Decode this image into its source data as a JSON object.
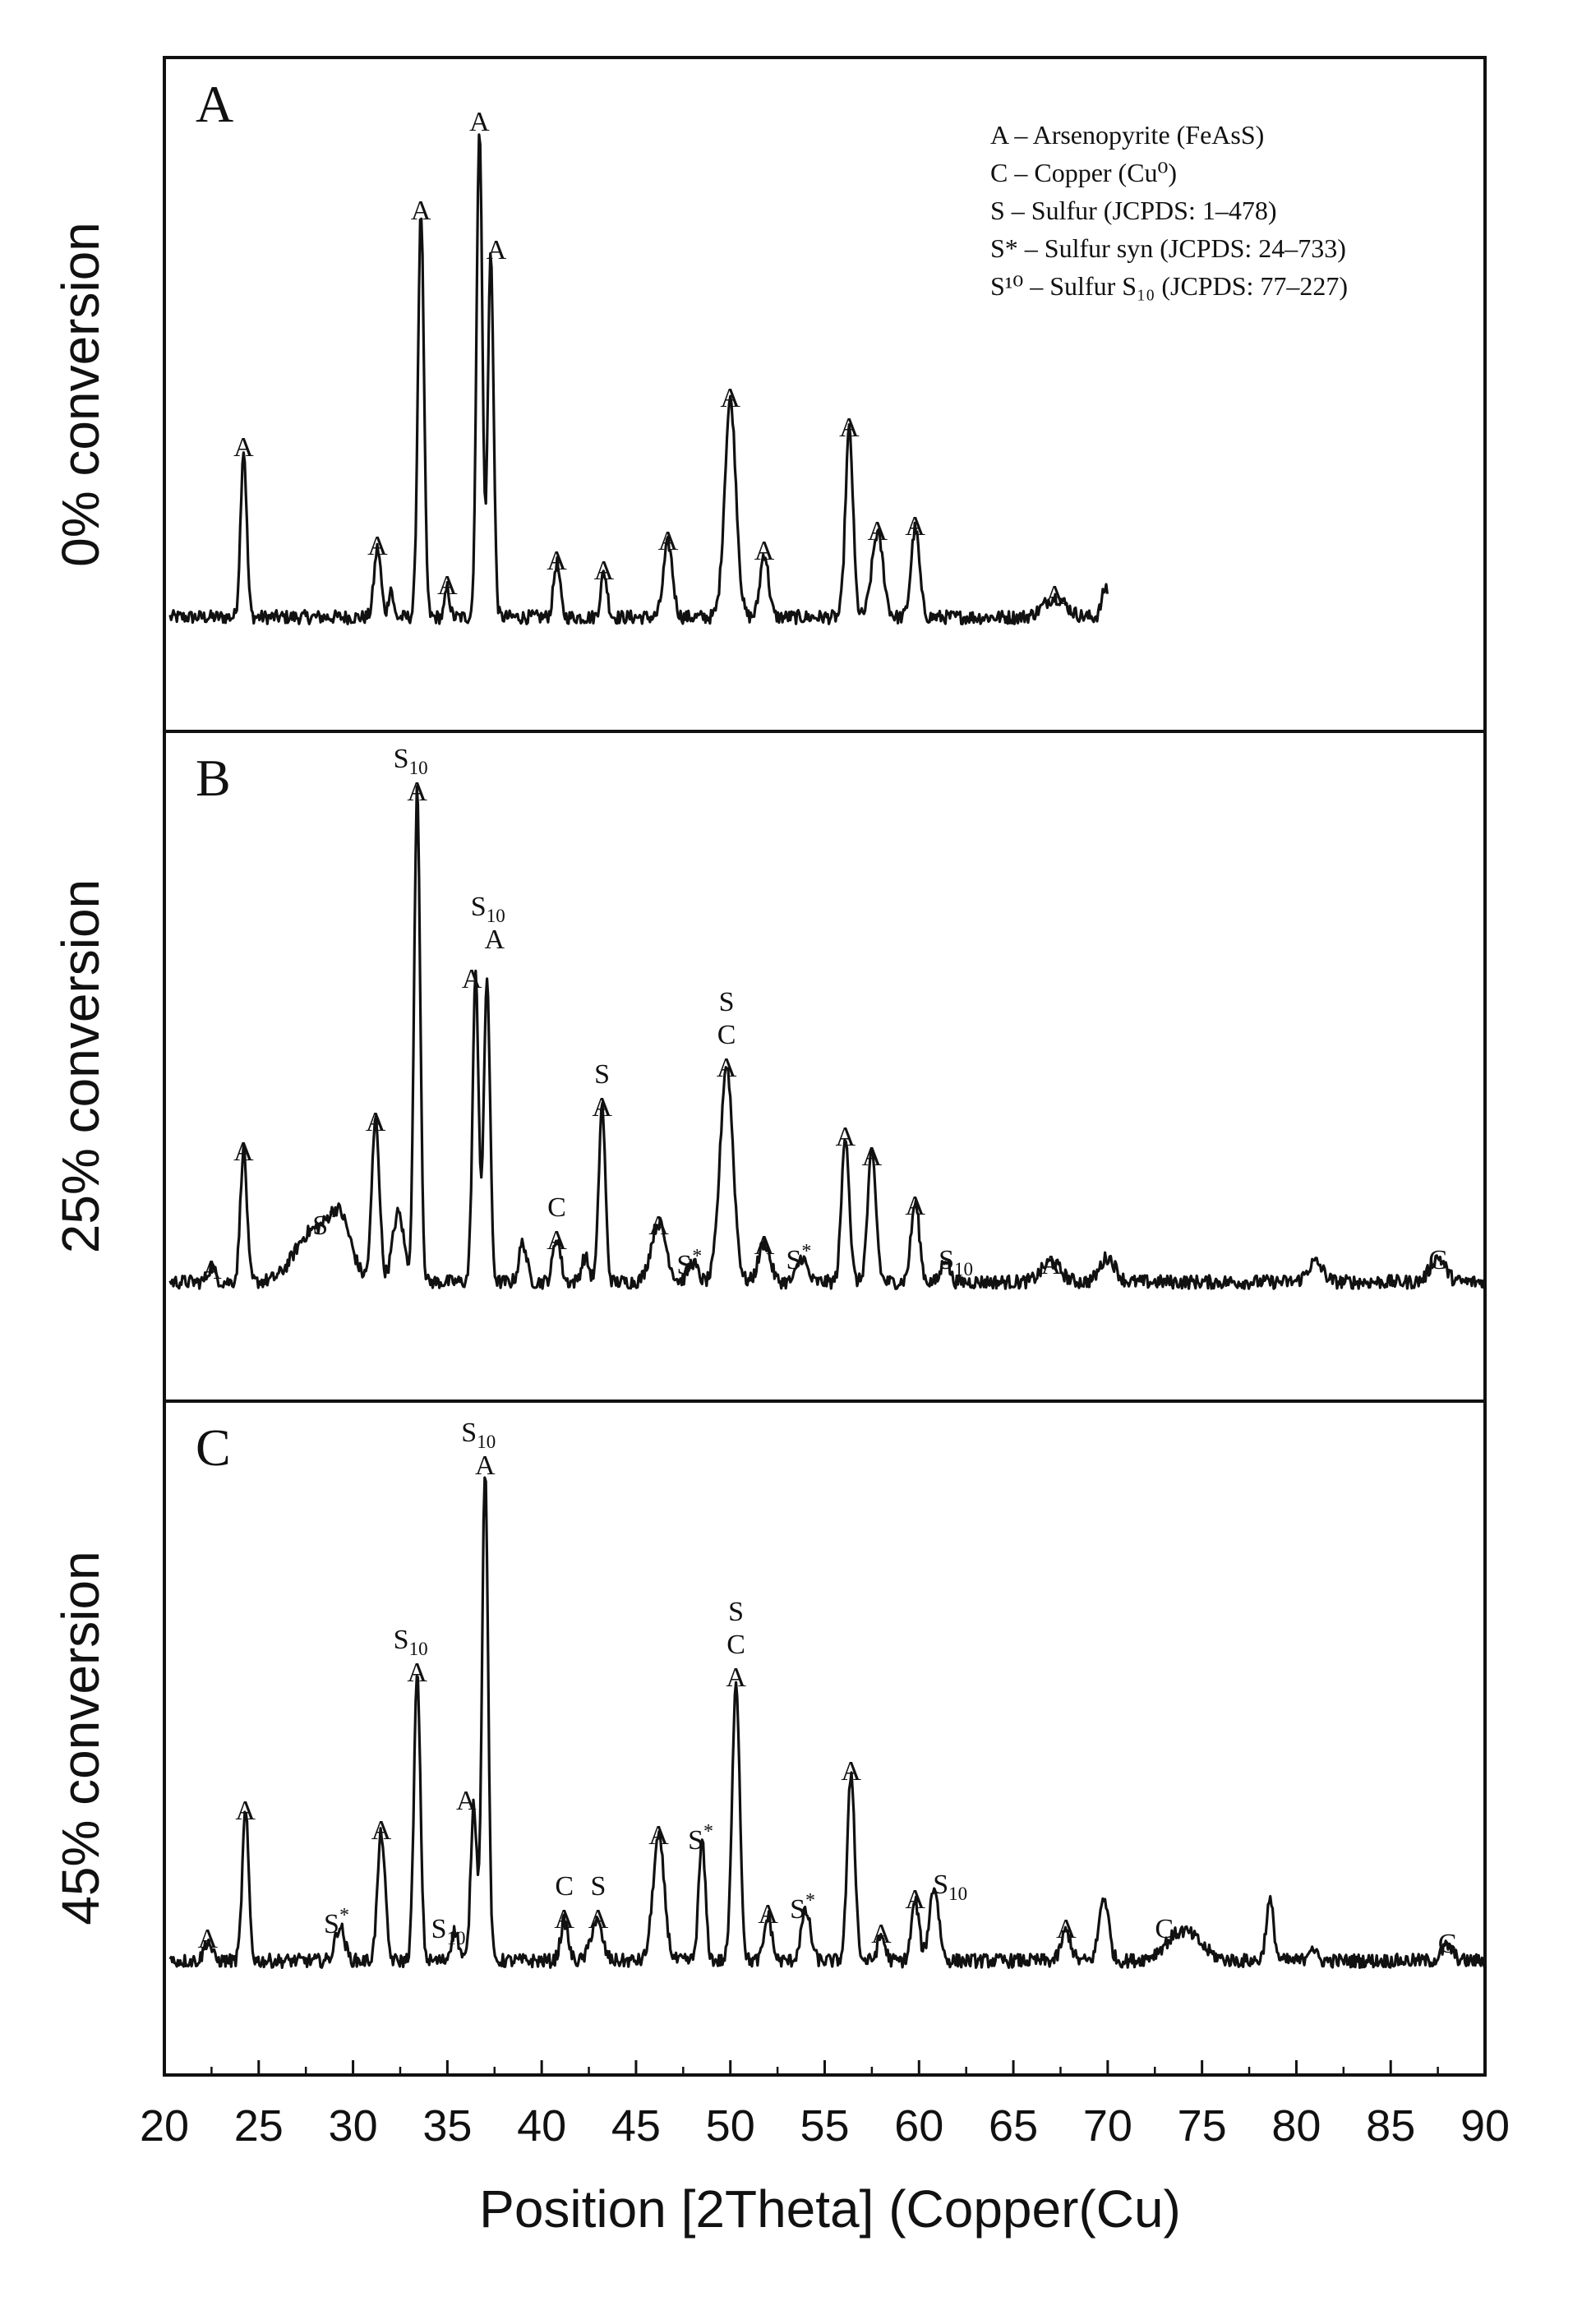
{
  "chart_data": {
    "type": "line",
    "xlabel": "Position [2Theta] (Copper(Cu)",
    "xlim": [
      20,
      90
    ],
    "x_ticks": [
      20,
      25,
      30,
      35,
      40,
      45,
      50,
      55,
      60,
      65,
      70,
      75,
      80,
      85,
      90
    ],
    "legend": {
      "placement": "top-right",
      "entries": [
        "A – Arsenopyrite (FeAsS)",
        "C – Copper (Cu⁰)",
        "S – Sulfur (JCPDS: 1–478)",
        "S* – Sulfur syn (JCPDS: 24–733)",
        "S¹⁰ – Sulfur S₁₀ (JCPDS: 77–227)"
      ]
    },
    "panels": [
      {
        "letter": "A",
        "ylabel": "0% conversion",
        "x_range": [
          20.3,
          70
        ],
        "baseline": 0.04,
        "peaks": [
          {
            "x": 24.2,
            "h": 0.34,
            "w": 0.16
          },
          {
            "x": 31.3,
            "h": 0.14,
            "w": 0.18
          },
          {
            "x": 32.0,
            "h": 0.06,
            "w": 0.12
          },
          {
            "x": 33.6,
            "h": 0.82,
            "w": 0.16
          },
          {
            "x": 35.0,
            "h": 0.06,
            "w": 0.12
          },
          {
            "x": 36.7,
            "h": 1.0,
            "w": 0.15
          },
          {
            "x": 37.3,
            "h": 0.74,
            "w": 0.15
          },
          {
            "x": 40.8,
            "h": 0.11,
            "w": 0.17
          },
          {
            "x": 43.3,
            "h": 0.09,
            "w": 0.17
          },
          {
            "x": 46.7,
            "h": 0.15,
            "w": 0.24
          },
          {
            "x": 50.0,
            "h": 0.44,
            "w": 0.3
          },
          {
            "x": 51.8,
            "h": 0.13,
            "w": 0.22
          },
          {
            "x": 56.3,
            "h": 0.38,
            "w": 0.2
          },
          {
            "x": 57.8,
            "h": 0.17,
            "w": 0.3
          },
          {
            "x": 59.8,
            "h": 0.18,
            "w": 0.22
          },
          {
            "x": 67.2,
            "h": 0.04,
            "w": 0.6
          },
          {
            "x": 69.9,
            "h": 0.06,
            "w": 0.2
          }
        ],
        "labels": [
          {
            "x": 24.2,
            "h": 0.34,
            "lines": [
              "A"
            ]
          },
          {
            "x": 31.3,
            "h": 0.14,
            "lines": [
              "A"
            ]
          },
          {
            "x": 33.6,
            "h": 0.82,
            "lines": [
              "A"
            ]
          },
          {
            "x": 35.0,
            "h": 0.06,
            "lines": [
              "A"
            ]
          },
          {
            "x": 36.7,
            "h": 1.0,
            "lines": [
              "A"
            ]
          },
          {
            "x": 37.6,
            "h": 0.74,
            "lines": [
              "A"
            ]
          },
          {
            "x": 40.8,
            "h": 0.11,
            "lines": [
              "A"
            ]
          },
          {
            "x": 43.3,
            "h": 0.09,
            "lines": [
              "A"
            ]
          },
          {
            "x": 46.7,
            "h": 0.15,
            "lines": [
              "A"
            ]
          },
          {
            "x": 50.0,
            "h": 0.44,
            "lines": [
              "A"
            ]
          },
          {
            "x": 51.8,
            "h": 0.13,
            "lines": [
              "A"
            ]
          },
          {
            "x": 56.3,
            "h": 0.38,
            "lines": [
              "A"
            ]
          },
          {
            "x": 57.8,
            "h": 0.17,
            "lines": [
              "A"
            ]
          },
          {
            "x": 59.8,
            "h": 0.18,
            "lines": [
              "A"
            ]
          },
          {
            "x": 67.2,
            "h": 0.04,
            "lines": [
              "A"
            ]
          }
        ]
      },
      {
        "letter": "B",
        "ylabel": "25% conversion",
        "x_range": [
          20.3,
          90
        ],
        "baseline": 0.05,
        "peaks": [
          {
            "x": 22.5,
            "h": 0.03,
            "w": 0.2
          },
          {
            "x": 24.2,
            "h": 0.27,
            "w": 0.17
          },
          {
            "x": 27.8,
            "h": 0.1,
            "w": 0.9
          },
          {
            "x": 29.3,
            "h": 0.12,
            "w": 0.6
          },
          {
            "x": 31.2,
            "h": 0.33,
            "w": 0.2
          },
          {
            "x": 32.4,
            "h": 0.14,
            "w": 0.3
          },
          {
            "x": 33.4,
            "h": 1.0,
            "w": 0.16
          },
          {
            "x": 36.5,
            "h": 0.62,
            "w": 0.16
          },
          {
            "x": 37.1,
            "h": 0.62,
            "w": 0.16
          },
          {
            "x": 39.0,
            "h": 0.08,
            "w": 0.2
          },
          {
            "x": 40.8,
            "h": 0.09,
            "w": 0.2
          },
          {
            "x": 42.3,
            "h": 0.05,
            "w": 0.2
          },
          {
            "x": 43.2,
            "h": 0.36,
            "w": 0.17
          },
          {
            "x": 46.2,
            "h": 0.12,
            "w": 0.4
          },
          {
            "x": 48.0,
            "h": 0.04,
            "w": 0.25
          },
          {
            "x": 49.8,
            "h": 0.44,
            "w": 0.34
          },
          {
            "x": 51.8,
            "h": 0.08,
            "w": 0.3
          },
          {
            "x": 53.8,
            "h": 0.05,
            "w": 0.25
          },
          {
            "x": 56.1,
            "h": 0.3,
            "w": 0.2
          },
          {
            "x": 57.5,
            "h": 0.26,
            "w": 0.22
          },
          {
            "x": 59.8,
            "h": 0.16,
            "w": 0.22
          },
          {
            "x": 61.4,
            "h": 0.05,
            "w": 0.2
          },
          {
            "x": 67.0,
            "h": 0.04,
            "w": 0.5
          },
          {
            "x": 70.0,
            "h": 0.05,
            "w": 0.4
          },
          {
            "x": 81.0,
            "h": 0.04,
            "w": 0.4
          },
          {
            "x": 87.5,
            "h": 0.05,
            "w": 0.4
          }
        ],
        "labels": [
          {
            "x": 22.5,
            "h": 0.03,
            "lines": [
              "A"
            ]
          },
          {
            "x": 24.2,
            "h": 0.27,
            "lines": [
              "A"
            ]
          },
          {
            "x": 28.7,
            "h": 0.12,
            "lines": [
              "S*"
            ]
          },
          {
            "x": 31.2,
            "h": 0.33,
            "lines": [
              "A"
            ]
          },
          {
            "x": 33.4,
            "h": 1.0,
            "lines": [
              "S10",
              "A"
            ]
          },
          {
            "x": 36.3,
            "h": 0.62,
            "lines": [
              "A"
            ]
          },
          {
            "x": 37.5,
            "h": 0.7,
            "lines": [
              "S10",
              "A"
            ]
          },
          {
            "x": 40.8,
            "h": 0.09,
            "lines": [
              "C",
              "A"
            ]
          },
          {
            "x": 43.2,
            "h": 0.36,
            "lines": [
              "S",
              "A"
            ]
          },
          {
            "x": 46.2,
            "h": 0.12,
            "lines": [
              "A"
            ]
          },
          {
            "x": 48.0,
            "h": 0.04,
            "lines": [
              "S*"
            ]
          },
          {
            "x": 49.8,
            "h": 0.44,
            "lines": [
              "S",
              "C",
              "A"
            ]
          },
          {
            "x": 51.8,
            "h": 0.08,
            "lines": [
              "A"
            ]
          },
          {
            "x": 53.8,
            "h": 0.05,
            "lines": [
              "S*"
            ]
          },
          {
            "x": 56.1,
            "h": 0.3,
            "lines": [
              "A"
            ]
          },
          {
            "x": 57.5,
            "h": 0.26,
            "lines": [
              "A"
            ]
          },
          {
            "x": 59.8,
            "h": 0.16,
            "lines": [
              "A"
            ]
          },
          {
            "x": 62.3,
            "h": 0.05,
            "lines": [
              "S10"
            ]
          },
          {
            "x": 67.0,
            "h": 0.04,
            "lines": [
              "A"
            ]
          },
          {
            "x": 87.5,
            "h": 0.05,
            "lines": [
              "C"
            ]
          }
        ]
      },
      {
        "letter": "C",
        "ylabel": "45% conversion",
        "x_range": [
          20.3,
          90
        ],
        "baseline": 0.04,
        "peaks": [
          {
            "x": 22.3,
            "h": 0.04,
            "w": 0.2
          },
          {
            "x": 24.3,
            "h": 0.3,
            "w": 0.17
          },
          {
            "x": 29.3,
            "h": 0.07,
            "w": 0.25
          },
          {
            "x": 31.5,
            "h": 0.26,
            "w": 0.2
          },
          {
            "x": 33.4,
            "h": 0.58,
            "w": 0.17
          },
          {
            "x": 35.4,
            "h": 0.06,
            "w": 0.2
          },
          {
            "x": 36.4,
            "h": 0.32,
            "w": 0.16
          },
          {
            "x": 37.0,
            "h": 1.0,
            "w": 0.16
          },
          {
            "x": 41.2,
            "h": 0.08,
            "w": 0.2
          },
          {
            "x": 42.9,
            "h": 0.08,
            "w": 0.3
          },
          {
            "x": 46.2,
            "h": 0.25,
            "w": 0.3
          },
          {
            "x": 48.5,
            "h": 0.24,
            "w": 0.18
          },
          {
            "x": 50.3,
            "h": 0.57,
            "w": 0.2
          },
          {
            "x": 52.0,
            "h": 0.09,
            "w": 0.2
          },
          {
            "x": 54.0,
            "h": 0.1,
            "w": 0.25
          },
          {
            "x": 56.4,
            "h": 0.38,
            "w": 0.2
          },
          {
            "x": 58.0,
            "h": 0.05,
            "w": 0.2
          },
          {
            "x": 59.8,
            "h": 0.12,
            "w": 0.2
          },
          {
            "x": 60.8,
            "h": 0.15,
            "w": 0.25
          },
          {
            "x": 67.8,
            "h": 0.06,
            "w": 0.25
          },
          {
            "x": 69.8,
            "h": 0.13,
            "w": 0.25
          },
          {
            "x": 74.0,
            "h": 0.06,
            "w": 0.9
          },
          {
            "x": 78.6,
            "h": 0.12,
            "w": 0.2
          },
          {
            "x": 80.8,
            "h": 0.03,
            "w": 0.2
          },
          {
            "x": 88.0,
            "h": 0.03,
            "w": 0.3
          }
        ],
        "labels": [
          {
            "x": 22.3,
            "h": 0.04,
            "lines": [
              "A"
            ]
          },
          {
            "x": 24.3,
            "h": 0.3,
            "lines": [
              "A"
            ]
          },
          {
            "x": 29.3,
            "h": 0.07,
            "lines": [
              "S*"
            ]
          },
          {
            "x": 31.5,
            "h": 0.26,
            "lines": [
              "A"
            ]
          },
          {
            "x": 33.4,
            "h": 0.58,
            "lines": [
              "S10",
              "A"
            ]
          },
          {
            "x": 35.4,
            "h": 0.06,
            "lines": [
              "S10"
            ]
          },
          {
            "x": 36.0,
            "h": 0.32,
            "lines": [
              "A"
            ]
          },
          {
            "x": 37.0,
            "h": 1.0,
            "lines": [
              "S10",
              "A"
            ]
          },
          {
            "x": 41.2,
            "h": 0.08,
            "lines": [
              "C",
              "A"
            ]
          },
          {
            "x": 43.0,
            "h": 0.08,
            "lines": [
              "S",
              "A"
            ]
          },
          {
            "x": 46.2,
            "h": 0.25,
            "lines": [
              "A"
            ]
          },
          {
            "x": 48.6,
            "h": 0.24,
            "lines": [
              "S*"
            ]
          },
          {
            "x": 50.3,
            "h": 0.57,
            "lines": [
              "S",
              "C",
              "A"
            ]
          },
          {
            "x": 52.0,
            "h": 0.09,
            "lines": [
              "A"
            ]
          },
          {
            "x": 54.0,
            "h": 0.1,
            "lines": [
              "S*"
            ]
          },
          {
            "x": 56.4,
            "h": 0.38,
            "lines": [
              "A"
            ]
          },
          {
            "x": 58.0,
            "h": 0.05,
            "lines": [
              "A"
            ]
          },
          {
            "x": 59.8,
            "h": 0.12,
            "lines": [
              "A"
            ]
          },
          {
            "x": 62.0,
            "h": 0.15,
            "lines": [
              "S10"
            ]
          },
          {
            "x": 67.8,
            "h": 0.06,
            "lines": [
              "A"
            ]
          },
          {
            "x": 73.0,
            "h": 0.06,
            "lines": [
              "C"
            ]
          },
          {
            "x": 88.0,
            "h": 0.03,
            "lines": [
              "C"
            ]
          }
        ]
      }
    ]
  }
}
